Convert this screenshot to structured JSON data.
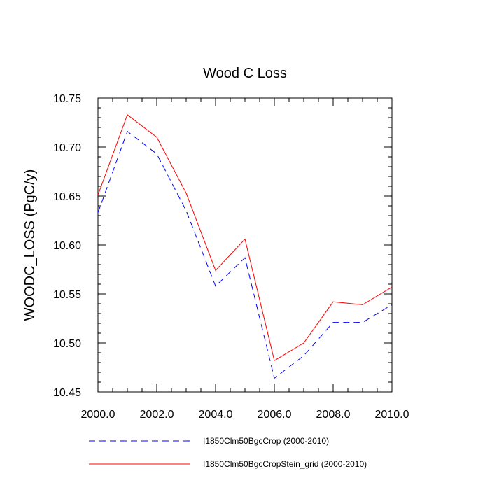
{
  "chart_data": {
    "type": "line",
    "title": "Wood C Loss",
    "xlabel": "",
    "ylabel": "WOODC_LOSS  (PgC/y)",
    "x": [
      2000,
      2001,
      2002,
      2003,
      2004,
      2005,
      2006,
      2007,
      2008,
      2009,
      2010
    ],
    "xlim": [
      2000,
      2010
    ],
    "ylim": [
      10.45,
      10.75
    ],
    "x_ticks": [
      "2000.0",
      "2002.0",
      "2004.0",
      "2006.0",
      "2008.0",
      "2010.0"
    ],
    "y_ticks": [
      "10.45",
      "10.50",
      "10.55",
      "10.60",
      "10.65",
      "10.70",
      "10.75"
    ],
    "grid": false,
    "legend_position": "bottom",
    "series": [
      {
        "name": "I1850Clm50BgcCrop (2000-2010)",
        "color": "#0000ff",
        "dash": "dashed",
        "values": [
          10.633,
          10.716,
          10.693,
          10.635,
          10.558,
          10.587,
          10.464,
          10.487,
          10.521,
          10.521,
          10.539
        ]
      },
      {
        "name": "I1850Clm50BgcCropStein_grid (2000-2010)",
        "color": "#ff0000",
        "dash": "solid",
        "values": [
          10.651,
          10.733,
          10.71,
          10.653,
          10.574,
          10.606,
          10.482,
          10.5,
          10.542,
          10.539,
          10.557
        ]
      }
    ]
  }
}
